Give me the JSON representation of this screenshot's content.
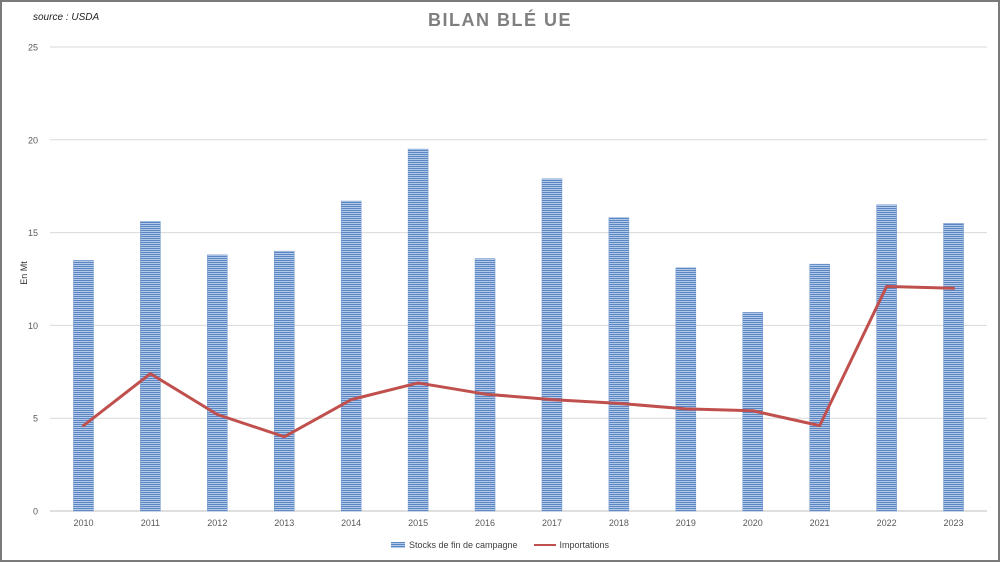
{
  "source_label": "source : USDA",
  "chart_data": {
    "type": "bar",
    "title": "BILAN BLÉ UE",
    "xlabel": "",
    "ylabel": "En Mt",
    "categories": [
      "2010",
      "2011",
      "2012",
      "2013",
      "2014",
      "2015",
      "2016",
      "2017",
      "2018",
      "2019",
      "2020",
      "2021",
      "2022",
      "2023"
    ],
    "ylim": [
      0,
      25
    ],
    "yticks": [
      0,
      5,
      10,
      15,
      20,
      25
    ],
    "grid": true,
    "legend_position": "bottom",
    "series": [
      {
        "name": "Stocks de fin de campagne",
        "type": "bar",
        "color": "#5b86c4",
        "values": [
          13.5,
          15.6,
          13.8,
          14.0,
          16.7,
          19.5,
          13.6,
          17.9,
          15.8,
          13.1,
          10.7,
          13.3,
          16.5,
          15.5
        ]
      },
      {
        "name": "Importations",
        "type": "line",
        "color": "#c0504d",
        "values": [
          4.6,
          7.4,
          5.2,
          4.0,
          6.0,
          6.9,
          6.3,
          6.0,
          5.8,
          5.5,
          5.4,
          4.6,
          12.1,
          12.0
        ]
      }
    ]
  }
}
